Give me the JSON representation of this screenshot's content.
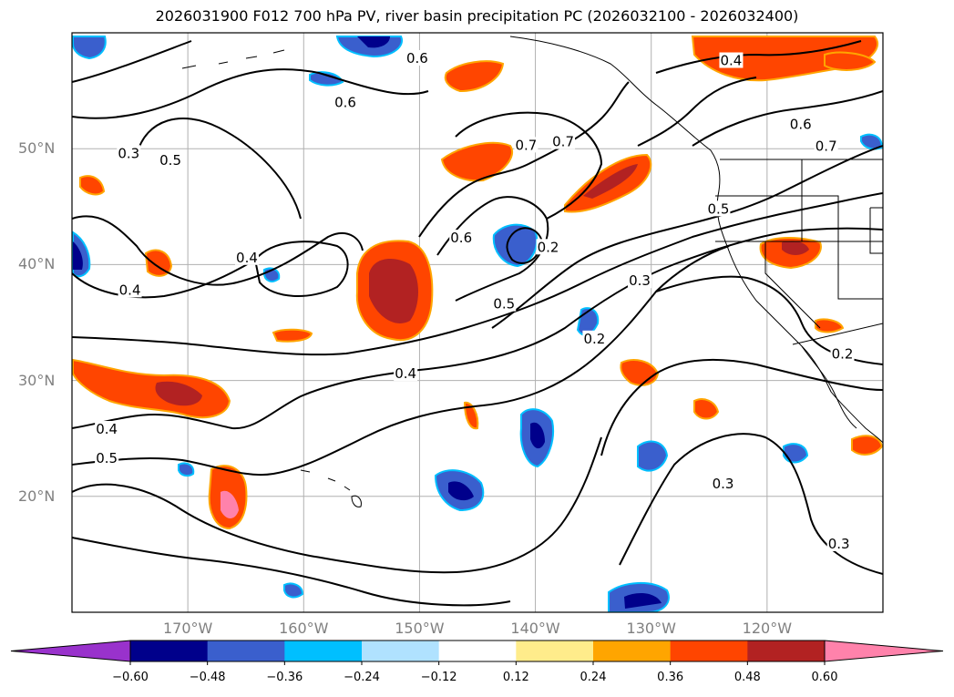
{
  "title": "2026031900 F012 700 hPa PV, river basin precipitation PC (2026032100 - 2026032400)",
  "lat_axis": [
    {
      "label": "50°N",
      "value": 50
    },
    {
      "label": "40°N",
      "value": 40
    },
    {
      "label": "30°N",
      "value": 30
    },
    {
      "label": "20°N",
      "value": 20
    }
  ],
  "lon_axis": [
    {
      "label": "170°W",
      "value": -170
    },
    {
      "label": "160°W",
      "value": -160
    },
    {
      "label": "150°W",
      "value": -150
    },
    {
      "label": "140°W",
      "value": -140
    },
    {
      "label": "130°W",
      "value": -130
    },
    {
      "label": "120°W",
      "value": -120
    }
  ],
  "extent": {
    "lon_min": -180,
    "lon_max": -110,
    "lat_min": 10,
    "lat_max": 60
  },
  "grid": true,
  "colorbar": {
    "colors": [
      "#9932cc",
      "#00008b",
      "#3a5fcd",
      "#00bfff",
      "#b0e2ff",
      "#ffffff",
      "#ffec8b",
      "#ffa500",
      "#ff4500",
      "#b22222",
      "#ff82ab"
    ],
    "tick_values": [
      -0.6,
      -0.48,
      -0.36,
      -0.24,
      -0.12,
      0.12,
      0.24,
      0.36,
      0.48,
      0.6
    ],
    "tick_labels": [
      "−0.60",
      "−0.48",
      "−0.36",
      "−0.24",
      "−0.12",
      "0.12",
      "0.24",
      "0.36",
      "0.48",
      "0.60"
    ],
    "extend": "both"
  },
  "contour_labels": [
    {
      "text": "0.3",
      "lon": -175.1,
      "lat": 49.6
    },
    {
      "text": "0.5",
      "lon": -171.5,
      "lat": 49.0
    },
    {
      "text": "0.4",
      "lon": -175.0,
      "lat": 37.8
    },
    {
      "text": "0.4",
      "lon": -164.9,
      "lat": 40.6
    },
    {
      "text": "0.4",
      "lon": -177.0,
      "lat": 25.8
    },
    {
      "text": "0.5",
      "lon": -177.0,
      "lat": 23.3
    },
    {
      "text": "0.4",
      "lon": -151.2,
      "lat": 30.6
    },
    {
      "text": "0.6",
      "lon": -156.4,
      "lat": 54.0
    },
    {
      "text": "0.6",
      "lon": -150.2,
      "lat": 57.8
    },
    {
      "text": "0.6",
      "lon": -146.4,
      "lat": 42.3
    },
    {
      "text": "0.7",
      "lon": -140.8,
      "lat": 50.3
    },
    {
      "text": "0.7",
      "lon": -137.6,
      "lat": 50.6
    },
    {
      "text": "0.5",
      "lon": -142.7,
      "lat": 36.6
    },
    {
      "text": "0.2",
      "lon": -138.9,
      "lat": 41.5
    },
    {
      "text": "0.2",
      "lon": -134.9,
      "lat": 33.6
    },
    {
      "text": "0.3",
      "lon": -131.0,
      "lat": 38.6
    },
    {
      "text": "0.5",
      "lon": -124.2,
      "lat": 44.8
    },
    {
      "text": "0.3",
      "lon": -123.8,
      "lat": 21.1
    },
    {
      "text": "0.4",
      "lon": -123.1,
      "lat": 57.6
    },
    {
      "text": "0.6",
      "lon": -117.1,
      "lat": 52.1
    },
    {
      "text": "0.7",
      "lon": -114.9,
      "lat": 50.2
    },
    {
      "text": "0.2",
      "lon": -113.5,
      "lat": 32.3
    },
    {
      "text": "0.3",
      "lon": -113.8,
      "lat": 15.9
    }
  ]
}
